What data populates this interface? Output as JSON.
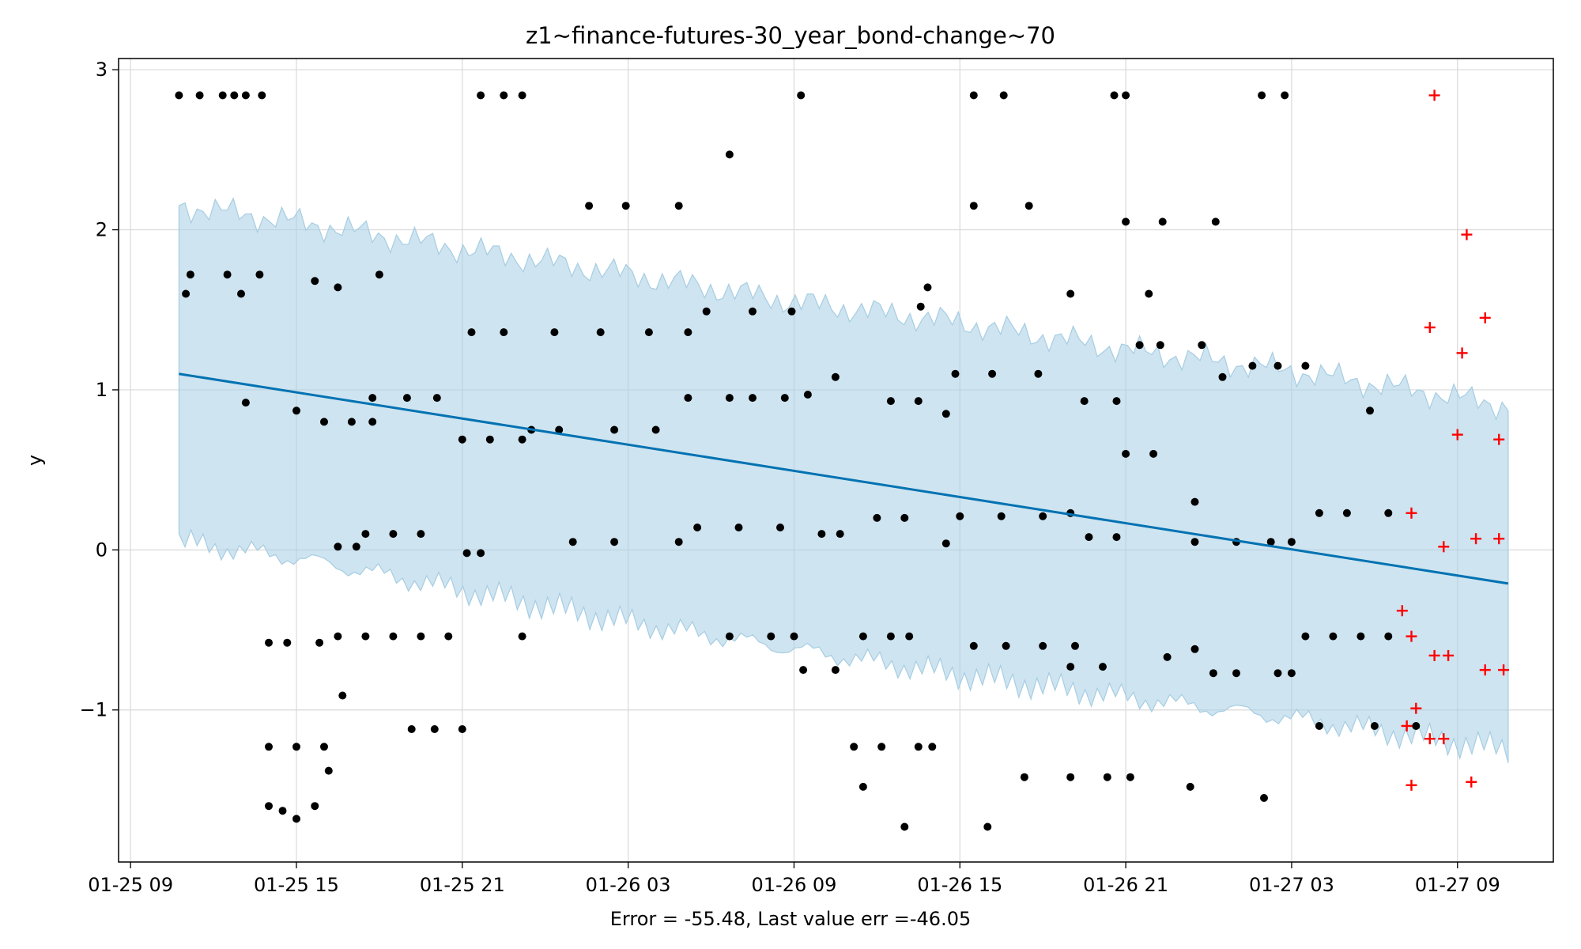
{
  "chart_data": {
    "type": "scatter",
    "title": "z1~finance-futures-30_year_bond-change~70",
    "xlabel": "Error = -55.48, Last value err =-46.05",
    "ylabel": "y",
    "x_unit": "hours (datetime axis)",
    "xlim": [
      "01-25 08:34",
      "01-27 12:28"
    ],
    "ylim": [
      -1.95,
      3.07
    ],
    "x_tick_labels": [
      "01-25 09",
      "01-25 15",
      "01-25 21",
      "01-26 03",
      "01-26 09",
      "01-26 15",
      "01-26 21",
      "01-27 03",
      "01-27 09"
    ],
    "y_tick_labels": [
      "−1",
      "0",
      "1",
      "2",
      "3"
    ],
    "y_ticks": [
      -1,
      0,
      1,
      2,
      3
    ],
    "grid": true,
    "colors": {
      "trend": "#0072b2",
      "band": "#a6cde3",
      "observed": "#000000",
      "future": "#ff0000"
    },
    "trend": {
      "x": [
        "01-25 10:45",
        "01-27 10:50"
      ],
      "y": [
        1.1,
        -0.21
      ]
    },
    "band": {
      "x": [
        "01-25 10:45",
        "01-25 15:00",
        "01-25 21:00",
        "01-26 03:00",
        "01-26 09:00",
        "01-26 15:00",
        "01-26 21:00",
        "01-27 03:00",
        "01-27 10:50"
      ],
      "upper": [
        2.15,
        2.05,
        1.88,
        1.72,
        1.55,
        1.42,
        1.25,
        1.12,
        0.9
      ],
      "lower": [
        0.05,
        -0.05,
        -0.25,
        -0.45,
        -0.62,
        -0.78,
        -0.92,
        -1.05,
        -1.25
      ]
    },
    "series": [
      {
        "marker": "dot",
        "points": [
          [
            "01-25 10:45",
            2.84
          ],
          [
            "01-25 11:30",
            2.84
          ],
          [
            "01-25 12:20",
            2.84
          ],
          [
            "01-25 12:45",
            2.84
          ],
          [
            "01-25 13:10",
            2.84
          ],
          [
            "01-25 13:45",
            2.84
          ],
          [
            "01-25 21:40",
            2.84
          ],
          [
            "01-25 22:30",
            2.84
          ],
          [
            "01-25 23:10",
            2.84
          ],
          [
            "01-26 09:15",
            2.84
          ],
          [
            "01-26 15:30",
            2.84
          ],
          [
            "01-26 16:35",
            2.84
          ],
          [
            "01-26 20:35",
            2.84
          ],
          [
            "01-26 21:00",
            2.84
          ],
          [
            "01-27 01:55",
            2.84
          ],
          [
            "01-27 02:45",
            2.84
          ],
          [
            "01-26 06:40",
            2.47
          ],
          [
            "01-26 01:35",
            2.15
          ],
          [
            "01-26 02:55",
            2.15
          ],
          [
            "01-26 04:50",
            2.15
          ],
          [
            "01-26 15:30",
            2.15
          ],
          [
            "01-26 17:30",
            2.15
          ],
          [
            "01-26 21:00",
            2.05
          ],
          [
            "01-26 22:20",
            2.05
          ],
          [
            "01-27 00:15",
            2.05
          ],
          [
            "01-25 11:10",
            1.72
          ],
          [
            "01-25 12:30",
            1.72
          ],
          [
            "01-25 13:40",
            1.72
          ],
          [
            "01-25 18:00",
            1.72
          ],
          [
            "01-25 15:40",
            1.68
          ],
          [
            "01-25 11:00",
            1.6
          ],
          [
            "01-25 13:00",
            1.6
          ],
          [
            "01-25 16:30",
            1.64
          ],
          [
            "01-26 19:00",
            1.6
          ],
          [
            "01-26 21:50",
            1.6
          ],
          [
            "01-26 13:50",
            1.64
          ],
          [
            "01-26 13:35",
            1.52
          ],
          [
            "01-26 05:50",
            1.49
          ],
          [
            "01-26 07:30",
            1.49
          ],
          [
            "01-26 08:55",
            1.49
          ],
          [
            "01-25 21:20",
            1.36
          ],
          [
            "01-25 22:30",
            1.36
          ],
          [
            "01-26 00:20",
            1.36
          ],
          [
            "01-26 02:00",
            1.36
          ],
          [
            "01-26 03:45",
            1.36
          ],
          [
            "01-26 05:10",
            1.36
          ],
          [
            "01-26 21:30",
            1.28
          ],
          [
            "01-26 22:15",
            1.28
          ],
          [
            "01-26 23:45",
            1.28
          ],
          [
            "01-27 01:35",
            1.15
          ],
          [
            "01-27 02:30",
            1.15
          ],
          [
            "01-27 03:30",
            1.15
          ],
          [
            "01-26 14:50",
            1.1
          ],
          [
            "01-26 16:10",
            1.1
          ],
          [
            "01-26 17:50",
            1.1
          ],
          [
            "01-26 10:30",
            1.08
          ],
          [
            "01-27 00:30",
            1.08
          ],
          [
            "01-25 19:00",
            0.95
          ],
          [
            "01-25 17:45",
            0.95
          ],
          [
            "01-25 20:05",
            0.95
          ],
          [
            "01-26 05:10",
            0.95
          ],
          [
            "01-26 06:40",
            0.95
          ],
          [
            "01-26 07:30",
            0.95
          ],
          [
            "01-26 08:40",
            0.95
          ],
          [
            "01-26 09:30",
            0.97
          ],
          [
            "01-26 12:30",
            0.93
          ],
          [
            "01-26 13:30",
            0.93
          ],
          [
            "01-26 19:30",
            0.93
          ],
          [
            "01-26 20:40",
            0.93
          ],
          [
            "01-26 14:30",
            0.85
          ],
          [
            "01-27 05:50",
            0.87
          ],
          [
            "01-25 13:10",
            0.92
          ],
          [
            "01-25 15:00",
            0.87
          ],
          [
            "01-25 16:00",
            0.8
          ],
          [
            "01-25 17:00",
            0.8
          ],
          [
            "01-25 17:45",
            0.8
          ],
          [
            "01-25 23:30",
            0.75
          ],
          [
            "01-26 00:30",
            0.75
          ],
          [
            "01-26 02:30",
            0.75
          ],
          [
            "01-26 04:00",
            0.75
          ],
          [
            "01-25 21:00",
            0.69
          ],
          [
            "01-25 22:00",
            0.69
          ],
          [
            "01-25 23:10",
            0.69
          ],
          [
            "01-26 21:00",
            0.6
          ],
          [
            "01-26 22:00",
            0.6
          ],
          [
            "01-26 23:30",
            0.3
          ],
          [
            "01-27 04:00",
            0.23
          ],
          [
            "01-27 05:00",
            0.23
          ],
          [
            "01-27 06:30",
            0.23
          ],
          [
            "01-26 15:00",
            0.21
          ],
          [
            "01-26 16:30",
            0.21
          ],
          [
            "01-26 18:00",
            0.21
          ],
          [
            "01-26 19:00",
            0.23
          ],
          [
            "01-26 12:00",
            0.2
          ],
          [
            "01-26 13:00",
            0.2
          ],
          [
            "01-26 05:30",
            0.14
          ],
          [
            "01-26 07:00",
            0.14
          ],
          [
            "01-26 08:30",
            0.14
          ],
          [
            "01-25 17:30",
            0.1
          ],
          [
            "01-25 18:30",
            0.1
          ],
          [
            "01-25 19:30",
            0.1
          ],
          [
            "01-26 10:00",
            0.1
          ],
          [
            "01-26 10:40",
            0.1
          ],
          [
            "01-26 19:40",
            0.08
          ],
          [
            "01-26 20:40",
            0.08
          ],
          [
            "01-26 01:00",
            0.05
          ],
          [
            "01-26 02:30",
            0.05
          ],
          [
            "01-26 04:50",
            0.05
          ],
          [
            "01-26 23:30",
            0.05
          ],
          [
            "01-27 01:00",
            0.05
          ],
          [
            "01-27 02:15",
            0.05
          ],
          [
            "01-27 03:00",
            0.05
          ],
          [
            "01-26 14:30",
            0.04
          ],
          [
            "01-25 16:30",
            0.02
          ],
          [
            "01-25 17:10",
            0.02
          ],
          [
            "01-25 21:10",
            -0.02
          ],
          [
            "01-25 21:40",
            -0.02
          ],
          [
            "01-25 14:00",
            -0.58
          ],
          [
            "01-25 14:40",
            -0.58
          ],
          [
            "01-25 15:50",
            -0.58
          ],
          [
            "01-25 16:30",
            -0.54
          ],
          [
            "01-25 17:30",
            -0.54
          ],
          [
            "01-25 18:30",
            -0.54
          ],
          [
            "01-25 19:30",
            -0.54
          ],
          [
            "01-25 20:30",
            -0.54
          ],
          [
            "01-25 23:10",
            -0.54
          ],
          [
            "01-26 06:40",
            -0.54
          ],
          [
            "01-26 08:10",
            -0.54
          ],
          [
            "01-26 09:00",
            -0.54
          ],
          [
            "01-26 11:30",
            -0.54
          ],
          [
            "01-26 12:30",
            -0.54
          ],
          [
            "01-26 13:10",
            -0.54
          ],
          [
            "01-26 15:30",
            -0.6
          ],
          [
            "01-26 16:40",
            -0.6
          ],
          [
            "01-26 18:00",
            -0.6
          ],
          [
            "01-26 19:10",
            -0.6
          ],
          [
            "01-26 23:30",
            -0.62
          ],
          [
            "01-27 03:30",
            -0.54
          ],
          [
            "01-27 04:30",
            -0.54
          ],
          [
            "01-27 05:30",
            -0.54
          ],
          [
            "01-27 06:30",
            -0.54
          ],
          [
            "01-26 22:30",
            -0.67
          ],
          [
            "01-26 19:00",
            -0.73
          ],
          [
            "01-26 20:10",
            -0.73
          ],
          [
            "01-26 09:20",
            -0.75
          ],
          [
            "01-26 10:30",
            -0.75
          ],
          [
            "01-27 00:10",
            -0.77
          ],
          [
            "01-27 01:00",
            -0.77
          ],
          [
            "01-27 02:30",
            -0.77
          ],
          [
            "01-27 03:00",
            -0.77
          ],
          [
            "01-25 16:40",
            -0.91
          ],
          [
            "01-27 04:00",
            -1.1
          ],
          [
            "01-27 06:00",
            -1.1
          ],
          [
            "01-27 07:30",
            -1.1
          ],
          [
            "01-25 19:10",
            -1.12
          ],
          [
            "01-25 20:00",
            -1.12
          ],
          [
            "01-25 21:00",
            -1.12
          ],
          [
            "01-25 14:00",
            -1.23
          ],
          [
            "01-25 15:00",
            -1.23
          ],
          [
            "01-25 16:00",
            -1.23
          ],
          [
            "01-26 11:10",
            -1.23
          ],
          [
            "01-26 12:10",
            -1.23
          ],
          [
            "01-26 13:30",
            -1.23
          ],
          [
            "01-26 14:00",
            -1.23
          ],
          [
            "01-25 16:10",
            -1.38
          ],
          [
            "01-26 11:30",
            -1.48
          ],
          [
            "01-26 17:20",
            -1.42
          ],
          [
            "01-26 19:00",
            -1.42
          ],
          [
            "01-26 20:20",
            -1.42
          ],
          [
            "01-26 21:10",
            -1.42
          ],
          [
            "01-26 23:20",
            -1.48
          ],
          [
            "01-27 02:00",
            -1.55
          ],
          [
            "01-25 14:00",
            -1.6
          ],
          [
            "01-25 14:30",
            -1.63
          ],
          [
            "01-25 15:00",
            -1.68
          ],
          [
            "01-25 15:40",
            -1.6
          ],
          [
            "01-26 13:00",
            -1.73
          ],
          [
            "01-26 16:00",
            -1.73
          ]
        ]
      },
      {
        "marker": "plus",
        "points": [
          [
            "01-27 08:10",
            2.84
          ],
          [
            "01-27 09:20",
            1.97
          ],
          [
            "01-27 10:00",
            1.45
          ],
          [
            "01-27 08:00",
            1.39
          ],
          [
            "01-27 09:10",
            1.23
          ],
          [
            "01-27 09:00",
            0.72
          ],
          [
            "01-27 10:30",
            0.69
          ],
          [
            "01-27 07:20",
            0.23
          ],
          [
            "01-27 08:30",
            0.02
          ],
          [
            "01-27 09:40",
            0.07
          ],
          [
            "01-27 10:30",
            0.07
          ],
          [
            "01-27 07:00",
            -0.38
          ],
          [
            "01-27 07:20",
            -0.54
          ],
          [
            "01-27 08:10",
            -0.66
          ],
          [
            "01-27 08:40",
            -0.66
          ],
          [
            "01-27 10:00",
            -0.75
          ],
          [
            "01-27 10:40",
            -0.75
          ],
          [
            "01-27 07:30",
            -0.99
          ],
          [
            "01-27 07:10",
            -1.1
          ],
          [
            "01-27 08:00",
            -1.18
          ],
          [
            "01-27 08:30",
            -1.18
          ],
          [
            "01-27 07:20",
            -1.47
          ],
          [
            "01-27 09:30",
            -1.45
          ]
        ]
      }
    ]
  }
}
